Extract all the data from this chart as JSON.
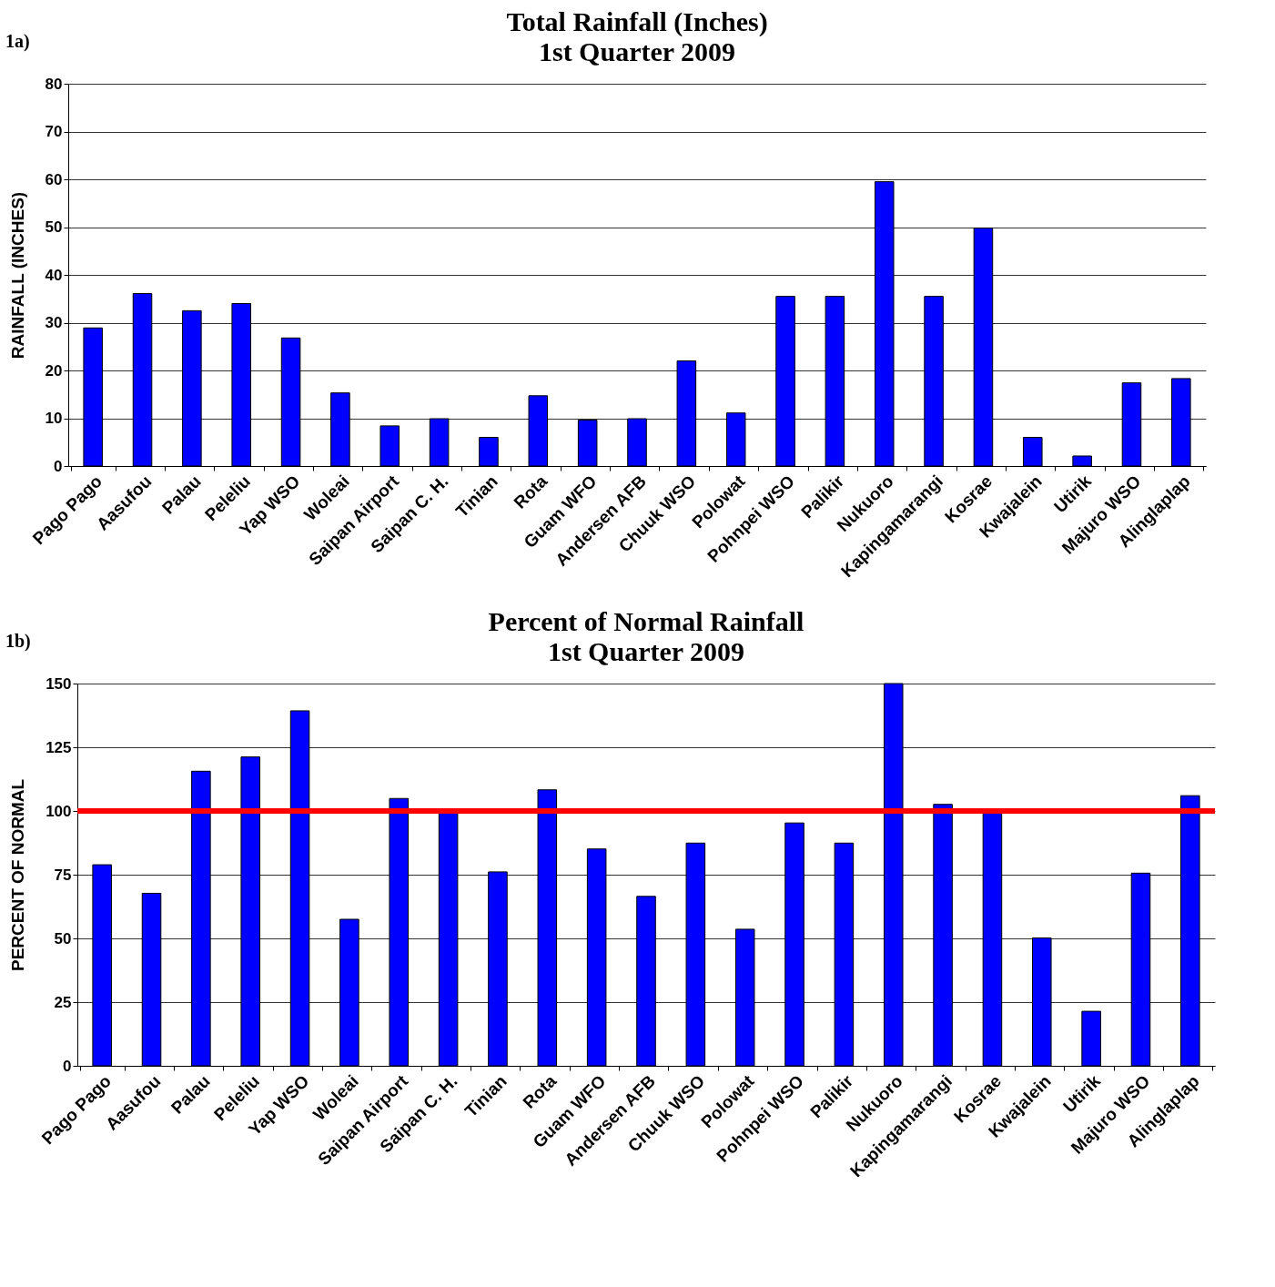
{
  "chart_data": [
    {
      "type": "bar",
      "title": "Total Rainfall (Inches)",
      "subtitle": "1st Quarter 2009",
      "ylabel": "RAINFALL (INCHES)",
      "annotations": [
        "1a)"
      ],
      "categories": [
        "Pago Pago",
        "Aasufou",
        "Palau",
        "Peleliu",
        "Yap WSO",
        "Woleai",
        "Saipan Airport",
        "Saipan C. H.",
        "Tinian",
        "Rota",
        "Guam WFO",
        "Andersen AFB",
        "Chuuk WSO",
        "Polowat",
        "Pohnpei WSO",
        "Palikir",
        "Nukuoro",
        "Kapingamarangi",
        "Kosrae",
        "Kwajalein",
        "Utirik",
        "Majuro WSO",
        "Alinglaplap"
      ],
      "values": [
        28.9,
        36.1,
        32.5,
        34.0,
        26.8,
        15.3,
        8.4,
        9.9,
        6.0,
        14.7,
        9.6,
        9.9,
        22.0,
        11.1,
        35.5,
        35.5,
        59.5,
        35.5,
        49.8,
        6.0,
        2.1,
        17.4,
        18.3
      ],
      "color": "#0000ff",
      "ylim": [
        0,
        80
      ],
      "yticks": [
        0,
        10,
        20,
        30,
        40,
        50,
        60,
        70,
        80
      ],
      "grid": "y"
    },
    {
      "type": "bar",
      "title": "Percent of Normal Rainfall",
      "subtitle": "1st Quarter 2009",
      "ylabel": "PERCENT OF NORMAL",
      "annotations": [
        "1b)"
      ],
      "categories": [
        "Pago Pago",
        "Aasufou",
        "Palau",
        "Peleliu",
        "Yap WSO",
        "Woleai",
        "Saipan Airport",
        "Saipan C. H.",
        "Tinian",
        "Rota",
        "Guam WFO",
        "Andersen AFB",
        "Chuuk WSO",
        "Polowat",
        "Pohnpei WSO",
        "Palikir",
        "Nukuoro",
        "Kapingamarangi",
        "Kosrae",
        "Kwajalein",
        "Utirik",
        "Majuro WSO",
        "Alinglaplap"
      ],
      "values": [
        78.9,
        67.7,
        115.6,
        121.2,
        139.3,
        57.5,
        104.9,
        99.8,
        76.1,
        108.3,
        85.1,
        66.5,
        87.4,
        53.6,
        95.3,
        87.4,
        150,
        102.6,
        99.8,
        50.2,
        21.4,
        75.6,
        106.0
      ],
      "color": "#0000ff",
      "ylim": [
        0,
        150
      ],
      "yticks": [
        0,
        25,
        50,
        75,
        100,
        125,
        150
      ],
      "grid": "y",
      "ref_lines": [
        {
          "axis": "y",
          "value": 100,
          "color": "#ff0000"
        }
      ]
    }
  ]
}
